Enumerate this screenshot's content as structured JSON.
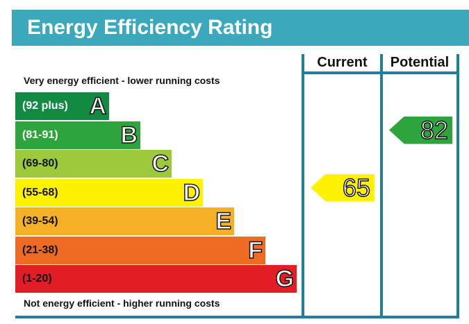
{
  "title": "Energy Efficiency Rating",
  "columns": {
    "current": "Current",
    "potential": "Potential"
  },
  "captions": {
    "top": "Very energy efficient - lower running costs",
    "bottom": "Not energy efficient - higher running costs"
  },
  "chart_data": {
    "type": "bar",
    "categories": [
      "A",
      "B",
      "C",
      "D",
      "E",
      "F",
      "G"
    ],
    "bands": [
      {
        "letter": "A",
        "range": "(92 plus)",
        "color": "#138a44",
        "dark_text": false
      },
      {
        "letter": "B",
        "range": "(81-91)",
        "color": "#2ea43c",
        "dark_text": false
      },
      {
        "letter": "C",
        "range": "(69-80)",
        "color": "#9cca3c",
        "dark_text": true
      },
      {
        "letter": "D",
        "range": "(55-68)",
        "color": "#fff200",
        "dark_text": true
      },
      {
        "letter": "E",
        "range": "(39-54)",
        "color": "#f6b026",
        "dark_text": true
      },
      {
        "letter": "F",
        "range": "(21-38)",
        "color": "#ee6b25",
        "dark_text": true
      },
      {
        "letter": "G",
        "range": "(1-20)",
        "color": "#e31d25",
        "dark_text": true
      }
    ],
    "current": {
      "value": 65,
      "band": "D",
      "color": "#fff200"
    },
    "potential": {
      "value": 82,
      "band": "B",
      "color": "#2ea43c"
    }
  }
}
